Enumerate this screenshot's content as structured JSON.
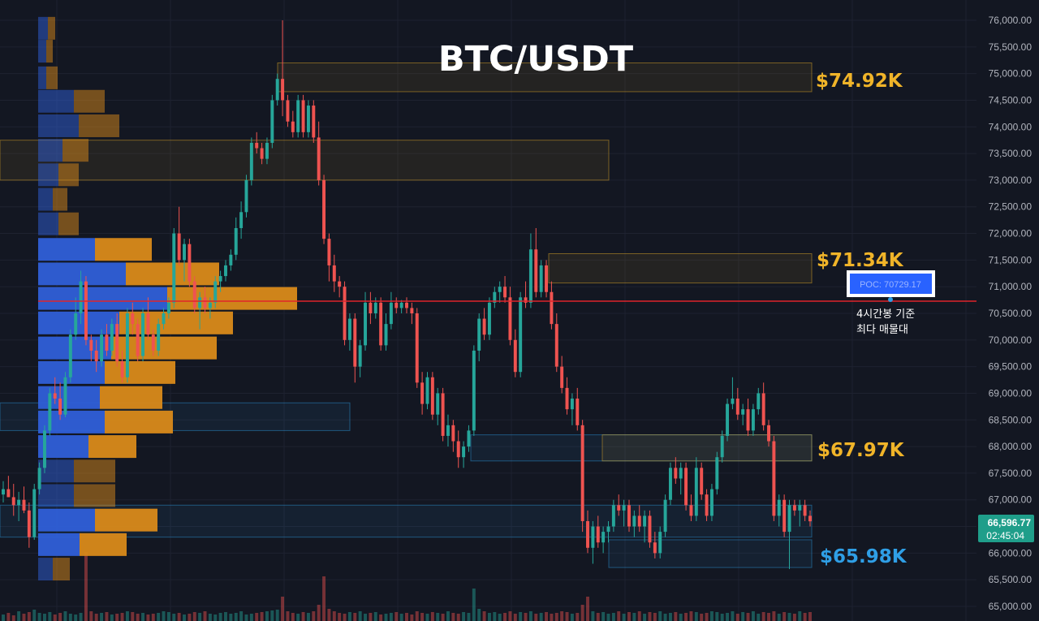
{
  "title": "BTC/USDT",
  "colors": {
    "background": "#131722",
    "grid": "#1e2230",
    "up": "#26a69a",
    "down": "#ef5350",
    "vp_blue": "#2f5fd8",
    "vp_orange": "#d98a1a",
    "resistance": "#f0b429",
    "support": "#2f9fe6",
    "poc_line": "#e0242b",
    "price_tag": "#1f9e8a",
    "axis_text": "#b2b5be"
  },
  "chart_data": {
    "type": "candlestick",
    "title": "BTC/USDT",
    "ylim": [
      64900,
      76250
    ],
    "y_ticks": [
      "76,000.00",
      "75,500.00",
      "75,000.00",
      "74,500.00",
      "74,000.00",
      "73,500.00",
      "73,000.00",
      "72,500.00",
      "72,000.00",
      "71,500.00",
      "71,000.00",
      "70,500.00",
      "70,000.00",
      "69,500.00",
      "69,000.00",
      "68,500.00",
      "68,000.00",
      "67,500.00",
      "67,000.00",
      "66,500.00",
      "66,000.00",
      "65,500.00",
      "65,000.00"
    ],
    "last_price": "66,596.77",
    "countdown": "02:45:04",
    "poc_label": "POC: 70729.17",
    "poc_value": 70729.17,
    "poc_note_line1": "4시간봉 기준",
    "poc_note_line2": "최다 매물대",
    "levels": [
      {
        "label": "$74.92K",
        "low": 74660,
        "high": 75200,
        "kind": "resistance"
      },
      {
        "label": "$71.34K",
        "low": 71070,
        "high": 71620,
        "kind": "resistance"
      },
      {
        "label": "$67.97K",
        "low": 67730,
        "high": 68220,
        "kind": "resistance"
      },
      {
        "label": "$65.98K",
        "low": 65730,
        "high": 66250,
        "kind": "support"
      }
    ],
    "volume_profile": [
      {
        "price": 75850,
        "buy": 0.12,
        "sell": 0.09
      },
      {
        "price": 75420,
        "buy": 0.1,
        "sell": 0.08
      },
      {
        "price": 74920,
        "buy": 0.1,
        "sell": 0.14
      },
      {
        "price": 74480,
        "buy": 0.44,
        "sell": 0.38
      },
      {
        "price": 74020,
        "buy": 0.5,
        "sell": 0.5
      },
      {
        "price": 73560,
        "buy": 0.3,
        "sell": 0.32
      },
      {
        "price": 73100,
        "buy": 0.25,
        "sell": 0.25
      },
      {
        "price": 72640,
        "buy": 0.18,
        "sell": 0.18
      },
      {
        "price": 72180,
        "buy": 0.25,
        "sell": 0.25
      },
      {
        "price": 71700,
        "buy": 0.7,
        "sell": 0.7
      },
      {
        "price": 71240,
        "buy": 1.08,
        "sell": 1.15
      },
      {
        "price": 70780,
        "buy": 1.59,
        "sell": 1.6
      },
      {
        "price": 70320,
        "buy": 1.0,
        "sell": 1.4
      },
      {
        "price": 69850,
        "buy": 0.9,
        "sell": 1.3
      },
      {
        "price": 69390,
        "buy": 0.82,
        "sell": 0.87
      },
      {
        "price": 68920,
        "buy": 0.76,
        "sell": 0.77
      },
      {
        "price": 68460,
        "buy": 0.82,
        "sell": 0.84
      },
      {
        "price": 68000,
        "buy": 0.62,
        "sell": 0.59
      },
      {
        "price": 67540,
        "buy": 0.44,
        "sell": 0.51
      },
      {
        "price": 67080,
        "buy": 0.44,
        "sell": 0.51
      },
      {
        "price": 66620,
        "buy": 0.7,
        "sell": 0.77
      },
      {
        "price": 66160,
        "buy": 0.51,
        "sell": 0.58
      },
      {
        "price": 65700,
        "buy": 0.18,
        "sell": 0.21
      }
    ],
    "candles": [
      [
        67100,
        67350,
        66950,
        67200
      ],
      [
        67200,
        67450,
        67050,
        67050
      ],
      [
        67050,
        67300,
        66700,
        66900
      ],
      [
        66900,
        67150,
        66600,
        67000
      ],
      [
        67000,
        67250,
        66750,
        66800
      ],
      [
        66800,
        66950,
        66100,
        66300
      ],
      [
        66300,
        67300,
        66250,
        67200
      ],
      [
        67200,
        67700,
        67100,
        67600
      ],
      [
        67600,
        68400,
        67500,
        68300
      ],
      [
        68300,
        69100,
        68200,
        69000
      ],
      [
        69000,
        69300,
        68800,
        68900
      ],
      [
        68900,
        69200,
        68500,
        68600
      ],
      [
        68600,
        69400,
        68550,
        69300
      ],
      [
        69300,
        70200,
        69200,
        70100
      ],
      [
        70100,
        70800,
        70000,
        70500
      ],
      [
        70500,
        71300,
        70300,
        71100
      ],
      [
        71100,
        71200,
        69900,
        70000
      ],
      [
        70000,
        70100,
        69600,
        69800
      ],
      [
        69800,
        70000,
        69400,
        69600
      ],
      [
        69600,
        70200,
        69500,
        70100
      ],
      [
        70100,
        70300,
        69700,
        69800
      ],
      [
        69800,
        70400,
        69700,
        70300
      ],
      [
        70300,
        70500,
        69500,
        69600
      ],
      [
        69600,
        69800,
        69200,
        69300
      ],
      [
        69300,
        70600,
        69200,
        70500
      ],
      [
        70500,
        70700,
        70100,
        70300
      ],
      [
        70300,
        70400,
        69600,
        69700
      ],
      [
        69700,
        70600,
        69600,
        70500
      ],
      [
        70500,
        70800,
        70000,
        70100
      ],
      [
        70100,
        70200,
        69700,
        69800
      ],
      [
        69800,
        70400,
        69700,
        70300
      ],
      [
        70300,
        70600,
        70200,
        70500
      ],
      [
        70500,
        70800,
        70400,
        70700
      ],
      [
        70700,
        72100,
        70600,
        72000
      ],
      [
        72000,
        72500,
        71400,
        71500
      ],
      [
        71500,
        71900,
        71100,
        71800
      ],
      [
        71800,
        71900,
        71000,
        71100
      ],
      [
        71100,
        71200,
        70500,
        70600
      ],
      [
        70600,
        70900,
        70200,
        70800
      ],
      [
        70800,
        71000,
        70500,
        70600
      ],
      [
        70600,
        70800,
        70400,
        70700
      ],
      [
        70700,
        71200,
        70600,
        71100
      ],
      [
        71100,
        71300,
        70900,
        71200
      ],
      [
        71200,
        71500,
        71100,
        71400
      ],
      [
        71400,
        71700,
        71300,
        71600
      ],
      [
        71600,
        72300,
        71500,
        72100
      ],
      [
        72100,
        72600,
        71900,
        72400
      ],
      [
        72400,
        73100,
        72300,
        73000
      ],
      [
        73000,
        73800,
        72900,
        73700
      ],
      [
        73700,
        73900,
        73500,
        73600
      ],
      [
        73600,
        73700,
        73300,
        73400
      ],
      [
        73400,
        73800,
        73300,
        73700
      ],
      [
        73700,
        74600,
        73600,
        74500
      ],
      [
        74500,
        75000,
        74400,
        74900
      ],
      [
        74900,
        76000,
        74200,
        74500
      ],
      [
        74500,
        74600,
        74000,
        74100
      ],
      [
        74100,
        74300,
        73800,
        73900
      ],
      [
        73900,
        74600,
        73800,
        74500
      ],
      [
        74500,
        74600,
        73800,
        73900
      ],
      [
        73900,
        74500,
        73800,
        74400
      ],
      [
        74400,
        74500,
        73700,
        73800
      ],
      [
        73800,
        74100,
        72900,
        73000
      ],
      [
        73000,
        73100,
        71800,
        71900
      ],
      [
        71900,
        72000,
        71100,
        71400
      ],
      [
        71400,
        71600,
        70900,
        71100
      ],
      [
        71100,
        71200,
        70800,
        71000
      ],
      [
        71000,
        71100,
        69900,
        70000
      ],
      [
        70000,
        70500,
        69800,
        70400
      ],
      [
        70400,
        70500,
        69200,
        69500
      ],
      [
        69500,
        70000,
        69300,
        69900
      ],
      [
        69900,
        70900,
        69800,
        70700
      ],
      [
        70700,
        70900,
        70300,
        70500
      ],
      [
        70500,
        70800,
        70400,
        70700
      ],
      [
        70700,
        70800,
        69800,
        69900
      ],
      [
        69900,
        70500,
        69800,
        70300
      ],
      [
        70300,
        70900,
        70200,
        70700
      ],
      [
        70700,
        70800,
        70500,
        70600
      ],
      [
        70600,
        70750,
        70500,
        70700
      ],
      [
        70700,
        70800,
        70500,
        70600
      ],
      [
        70600,
        70700,
        70300,
        70500
      ],
      [
        70500,
        70600,
        69100,
        69200
      ],
      [
        69200,
        69400,
        68600,
        68800
      ],
      [
        68800,
        69400,
        68700,
        69300
      ],
      [
        69300,
        69400,
        68500,
        68600
      ],
      [
        68600,
        69100,
        68400,
        69000
      ],
      [
        69000,
        69100,
        68100,
        68200
      ],
      [
        68200,
        68600,
        68000,
        68400
      ],
      [
        68400,
        68500,
        67900,
        68100
      ],
      [
        68100,
        68300,
        67600,
        67800
      ],
      [
        67800,
        68100,
        67600,
        68000
      ],
      [
        68000,
        68400,
        67900,
        68300
      ],
      [
        68300,
        69900,
        68200,
        69800
      ],
      [
        69800,
        70500,
        69600,
        70400
      ],
      [
        70400,
        70600,
        70000,
        70100
      ],
      [
        70100,
        70800,
        70000,
        70700
      ],
      [
        70700,
        71000,
        70600,
        70900
      ],
      [
        70900,
        71100,
        70700,
        71000
      ],
      [
        71000,
        71200,
        70700,
        70800
      ],
      [
        70800,
        71000,
        69900,
        70000
      ],
      [
        70000,
        70200,
        69300,
        69400
      ],
      [
        69400,
        70900,
        69300,
        70800
      ],
      [
        70800,
        71100,
        70600,
        70700
      ],
      [
        70700,
        72000,
        70600,
        71700
      ],
      [
        71700,
        72100,
        70800,
        70900
      ],
      [
        70900,
        71500,
        70800,
        71400
      ],
      [
        71400,
        71500,
        70800,
        70900
      ],
      [
        70900,
        71100,
        70200,
        70300
      ],
      [
        70300,
        70500,
        69400,
        69500
      ],
      [
        69500,
        69700,
        69000,
        69100
      ],
      [
        69100,
        69300,
        68600,
        68700
      ],
      [
        68700,
        69000,
        68400,
        68900
      ],
      [
        68900,
        69100,
        68300,
        68400
      ],
      [
        68400,
        68500,
        66400,
        66600
      ],
      [
        66600,
        66800,
        66000,
        66100
      ],
      [
        66100,
        66600,
        65800,
        66500
      ],
      [
        66500,
        66700,
        66100,
        66200
      ],
      [
        66200,
        66500,
        66000,
        66400
      ],
      [
        66400,
        66600,
        66200,
        66500
      ],
      [
        66500,
        67000,
        66400,
        66900
      ],
      [
        66900,
        67100,
        66700,
        66800
      ],
      [
        66800,
        67000,
        66500,
        66900
      ],
      [
        66900,
        67000,
        66400,
        66500
      ],
      [
        66500,
        66800,
        66300,
        66700
      ],
      [
        66700,
        66900,
        66400,
        66500
      ],
      [
        66500,
        66800,
        66200,
        66700
      ],
      [
        66700,
        66800,
        66100,
        66200
      ],
      [
        66200,
        66400,
        65900,
        66000
      ],
      [
        66000,
        66500,
        65900,
        66400
      ],
      [
        66400,
        67100,
        66300,
        67000
      ],
      [
        67000,
        67700,
        66900,
        67600
      ],
      [
        67600,
        67800,
        67300,
        67400
      ],
      [
        67400,
        67700,
        67100,
        67600
      ],
      [
        67600,
        67700,
        66800,
        66900
      ],
      [
        66900,
        67100,
        66600,
        66700
      ],
      [
        66700,
        67800,
        66600,
        67600
      ],
      [
        67600,
        67700,
        67000,
        67100
      ],
      [
        67100,
        67200,
        66600,
        66700
      ],
      [
        66700,
        67300,
        66600,
        67200
      ],
      [
        67200,
        67900,
        67100,
        67800
      ],
      [
        67800,
        68300,
        67700,
        68200
      ],
      [
        68200,
        68900,
        68100,
        68800
      ],
      [
        68800,
        69300,
        68700,
        68900
      ],
      [
        68900,
        69100,
        68500,
        68600
      ],
      [
        68600,
        68800,
        68400,
        68700
      ],
      [
        68700,
        68900,
        68200,
        68300
      ],
      [
        68300,
        68800,
        68200,
        68700
      ],
      [
        68700,
        69100,
        68600,
        69000
      ],
      [
        69000,
        69200,
        68300,
        68400
      ],
      [
        68400,
        68500,
        68000,
        68100
      ],
      [
        68100,
        68200,
        66600,
        66700
      ],
      [
        66700,
        67100,
        66500,
        67000
      ],
      [
        67000,
        67100,
        66300,
        66400
      ],
      [
        66400,
        67000,
        65700,
        66900
      ],
      [
        66900,
        67000,
        66700,
        66800
      ],
      [
        66800,
        67000,
        66500,
        66900
      ],
      [
        66900,
        67000,
        66600,
        66700
      ],
      [
        66700,
        66800,
        66500,
        66597
      ]
    ],
    "volume": [
      0.08,
      0.1,
      0.07,
      0.12,
      0.09,
      0.11,
      0.14,
      0.1,
      0.09,
      0.11,
      0.08,
      0.1,
      0.12,
      0.09,
      0.08,
      0.1,
      0.85,
      0.12,
      0.09,
      0.1,
      0.11,
      0.08,
      0.09,
      0.1,
      0.12,
      0.11,
      0.09,
      0.1,
      0.08,
      0.09,
      0.1,
      0.12,
      0.11,
      0.09,
      0.1,
      0.08,
      0.09,
      0.11,
      0.1,
      0.12,
      0.09,
      0.08,
      0.1,
      0.11,
      0.09,
      0.1,
      0.12,
      0.08,
      0.09,
      0.1,
      0.11,
      0.12,
      0.13,
      0.14,
      0.3,
      0.12,
      0.1,
      0.09,
      0.11,
      0.1,
      0.12,
      0.2,
      0.55,
      0.15,
      0.12,
      0.1,
      0.09,
      0.11,
      0.1,
      0.12,
      0.09,
      0.1,
      0.11,
      0.08,
      0.09,
      0.1,
      0.11,
      0.09,
      0.1,
      0.08,
      0.12,
      0.1,
      0.09,
      0.11,
      0.1,
      0.09,
      0.12,
      0.1,
      0.09,
      0.11,
      0.1,
      0.4,
      0.15,
      0.12,
      0.1,
      0.11,
      0.09,
      0.1,
      0.12,
      0.09,
      0.11,
      0.1,
      0.12,
      0.09,
      0.1,
      0.11,
      0.09,
      0.1,
      0.12,
      0.11,
      0.09,
      0.1,
      0.2,
      0.3,
      0.12,
      0.1,
      0.11,
      0.09,
      0.1,
      0.12,
      0.09,
      0.11,
      0.1,
      0.12,
      0.09,
      0.11,
      0.1,
      0.12,
      0.09,
      0.1,
      0.11,
      0.09,
      0.1,
      0.12,
      0.11,
      0.09,
      0.1,
      0.12,
      0.11,
      0.09,
      0.1,
      0.12,
      0.09,
      0.11,
      0.1,
      0.12,
      0.09,
      0.11,
      0.1,
      0.12,
      0.09,
      0.11,
      0.1,
      0.09,
      0.12,
      0.1,
      0.11,
      0.09
    ]
  }
}
